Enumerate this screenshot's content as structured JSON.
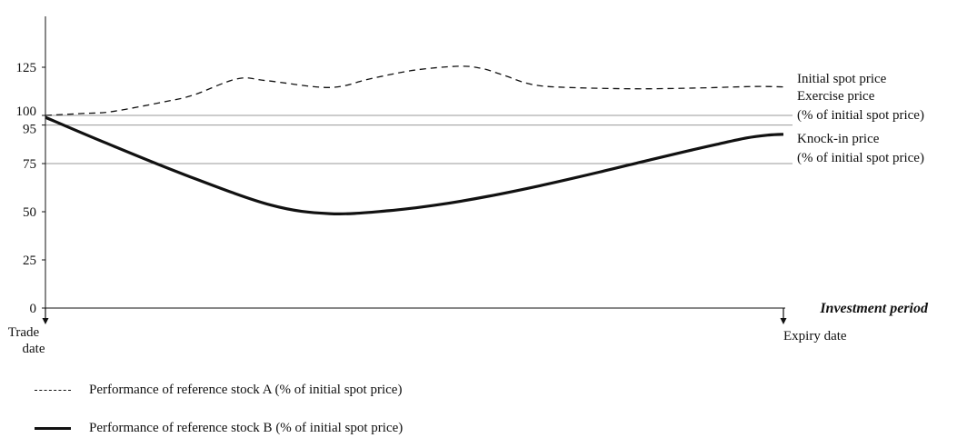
{
  "chart_data": {
    "type": "line",
    "y_ticks": [
      0,
      25,
      50,
      75,
      95,
      100,
      125
    ],
    "ylim": [
      0,
      125
    ],
    "x_axis_title": "Investment period",
    "x_start_label": [
      "Trade",
      "date"
    ],
    "x_end_label": "Expiry date",
    "reference_lines": [
      {
        "value": 100,
        "label": [
          "Initial spot price"
        ]
      },
      {
        "value": 95,
        "label": [
          "Exercise price",
          "(% of initial spot price)"
        ]
      },
      {
        "value": 75,
        "label": [
          "Knock-in price",
          "(% of initial spot price)"
        ]
      }
    ],
    "series": [
      {
        "name": "Performance of reference stock A (% of initial spot price)",
        "style": "dashed",
        "color": "#111111",
        "x": [
          0,
          0.05,
          0.09,
          0.16,
          0.2,
          0.26,
          0.3,
          0.385,
          0.44,
          0.5,
          0.56,
          0.59,
          0.62,
          0.66,
          0.71,
          0.8,
          0.88,
          0.96,
          1.0
        ],
        "y": [
          100,
          101,
          102,
          107,
          110.5,
          119,
          118,
          114.5,
          119,
          123.5,
          125.5,
          124.5,
          121,
          116,
          114.5,
          113.8,
          114.2,
          115,
          114.8
        ]
      },
      {
        "name": "Performance of reference stock B (% of initial spot price)",
        "style": "solid",
        "color": "#111111",
        "x": [
          0,
          0.08,
          0.19,
          0.305,
          0.385,
          0.465,
          0.53,
          0.6,
          0.67,
          0.75,
          0.82,
          0.87,
          0.91,
          0.95,
          0.98,
          1.0
        ],
        "y": [
          99,
          86,
          69,
          53.5,
          49,
          50.5,
          53.5,
          58,
          63.5,
          70.5,
          77,
          81.5,
          85,
          88.3,
          89.8,
          90.2
        ]
      }
    ]
  },
  "legend": {
    "a_label": "Performance of reference stock A (% of initial spot price)",
    "b_label": "Performance of reference stock B (% of initial spot price)"
  }
}
